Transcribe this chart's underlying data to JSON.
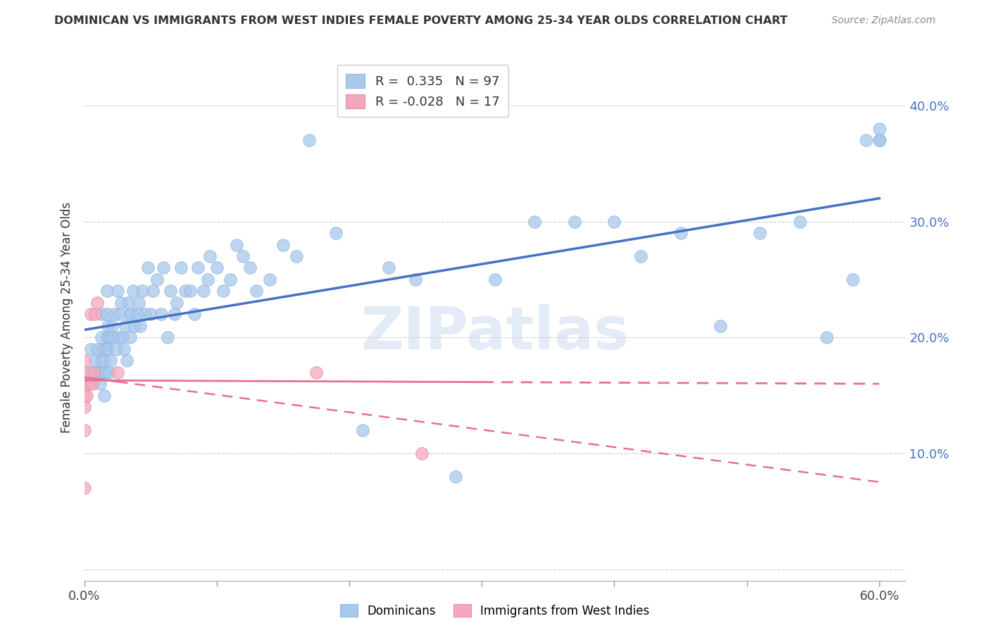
{
  "title": "DOMINICAN VS IMMIGRANTS FROM WEST INDIES FEMALE POVERTY AMONG 25-34 YEAR OLDS CORRELATION CHART",
  "source": "Source: ZipAtlas.com",
  "ylabel": "Female Poverty Among 25-34 Year Olds",
  "xlim": [
    0.0,
    0.62
  ],
  "ylim": [
    -0.01,
    0.445
  ],
  "xticks": [
    0.0,
    0.1,
    0.2,
    0.3,
    0.4,
    0.5,
    0.6
  ],
  "xticklabels_show": [
    "0.0%",
    "",
    "",
    "",
    "",
    "",
    "60.0%"
  ],
  "yticks": [
    0.0,
    0.1,
    0.2,
    0.3,
    0.4
  ],
  "yticklabels": [
    "",
    "10.0%",
    "20.0%",
    "30.0%",
    "40.0%"
  ],
  "dominicans_color": "#A8C8EC",
  "westindies_color": "#F5A8BC",
  "trendline_dom_color": "#4472C4",
  "trendline_wi_color": "#E87090",
  "background_color": "#FFFFFF",
  "watermark": "ZIPatlas",
  "legend_r_dom": "0.335",
  "legend_n_dom": "97",
  "legend_r_wi": "-0.028",
  "legend_n_wi": "17",
  "dom_x": [
    0.005,
    0.005,
    0.008,
    0.01,
    0.01,
    0.012,
    0.012,
    0.013,
    0.013,
    0.013,
    0.014,
    0.014,
    0.015,
    0.015,
    0.016,
    0.016,
    0.017,
    0.017,
    0.017,
    0.018,
    0.018,
    0.019,
    0.019,
    0.02,
    0.02,
    0.021,
    0.022,
    0.023,
    0.024,
    0.025,
    0.026,
    0.027,
    0.028,
    0.029,
    0.03,
    0.031,
    0.032,
    0.033,
    0.034,
    0.035,
    0.036,
    0.037,
    0.038,
    0.04,
    0.041,
    0.042,
    0.044,
    0.046,
    0.048,
    0.05,
    0.052,
    0.055,
    0.058,
    0.06,
    0.063,
    0.065,
    0.068,
    0.07,
    0.073,
    0.076,
    0.08,
    0.083,
    0.086,
    0.09,
    0.093,
    0.095,
    0.1,
    0.105,
    0.11,
    0.115,
    0.12,
    0.125,
    0.13,
    0.14,
    0.15,
    0.16,
    0.17,
    0.19,
    0.21,
    0.23,
    0.25,
    0.28,
    0.31,
    0.34,
    0.37,
    0.4,
    0.42,
    0.45,
    0.48,
    0.51,
    0.54,
    0.56,
    0.58,
    0.59,
    0.6,
    0.6,
    0.6
  ],
  "dom_y": [
    0.17,
    0.19,
    0.18,
    0.17,
    0.19,
    0.16,
    0.17,
    0.18,
    0.2,
    0.22,
    0.17,
    0.19,
    0.15,
    0.18,
    0.17,
    0.19,
    0.2,
    0.22,
    0.24,
    0.19,
    0.21,
    0.17,
    0.2,
    0.18,
    0.2,
    0.21,
    0.2,
    0.22,
    0.19,
    0.24,
    0.2,
    0.22,
    0.23,
    0.2,
    0.19,
    0.21,
    0.18,
    0.23,
    0.22,
    0.2,
    0.22,
    0.24,
    0.21,
    0.22,
    0.23,
    0.21,
    0.24,
    0.22,
    0.26,
    0.22,
    0.24,
    0.25,
    0.22,
    0.26,
    0.2,
    0.24,
    0.22,
    0.23,
    0.26,
    0.24,
    0.24,
    0.22,
    0.26,
    0.24,
    0.25,
    0.27,
    0.26,
    0.24,
    0.25,
    0.28,
    0.27,
    0.26,
    0.24,
    0.25,
    0.28,
    0.27,
    0.37,
    0.29,
    0.12,
    0.26,
    0.25,
    0.08,
    0.25,
    0.3,
    0.3,
    0.3,
    0.27,
    0.29,
    0.21,
    0.29,
    0.3,
    0.2,
    0.25,
    0.37,
    0.37,
    0.38,
    0.37
  ],
  "wi_x": [
    0.0,
    0.0,
    0.0,
    0.0,
    0.0,
    0.0,
    0.002,
    0.003,
    0.004,
    0.005,
    0.006,
    0.007,
    0.008,
    0.01,
    0.025,
    0.175,
    0.255
  ],
  "wi_y": [
    0.07,
    0.12,
    0.14,
    0.15,
    0.16,
    0.18,
    0.15,
    0.17,
    0.16,
    0.22,
    0.16,
    0.17,
    0.22,
    0.23,
    0.17,
    0.17,
    0.1
  ]
}
